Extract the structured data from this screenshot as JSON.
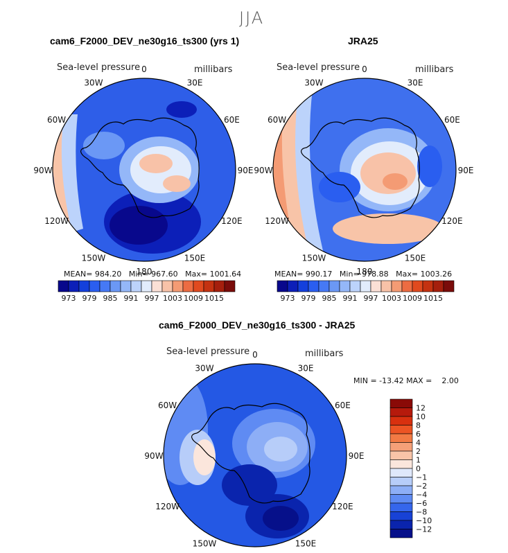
{
  "figure": {
    "season": "JJA"
  },
  "palette": {
    "ocean_bg": "#2a5ad9",
    "deep": "#06108a",
    "land_edge": "#000000",
    "levels": [
      "#08088c",
      "#0c1fb8",
      "#1440dc",
      "#2a5ef0",
      "#4679f5",
      "#6b98f5",
      "#94b7f8",
      "#bcd3fb",
      "#e2ecfc",
      "#fbe0d6",
      "#f8c2a8",
      "#f49b74",
      "#ec6c42",
      "#e04a1f",
      "#c43211",
      "#a51f0d",
      "#7a0c0a"
    ]
  },
  "panels": {
    "model": {
      "title": "cam6_F2000_DEV_ne30g16_ts300 (yrs 1)",
      "variable": "Sea-level pressure",
      "units": "millibars",
      "mean_label": "MEAN=",
      "mean": "984.20",
      "min_label": "Min=",
      "min": "967.60",
      "max_label": "Max=",
      "max": "1001.64"
    },
    "obs": {
      "title": "JRA25",
      "variable": "Sea-level pressure",
      "units": "millibars",
      "mean_label": "MEAN=",
      "mean": "990.17",
      "min_label": "Min=",
      "min": "978.88",
      "max_label": "Max=",
      "max": "1003.26"
    },
    "diff": {
      "title": "cam6_F2000_DEV_ne30g16_ts300 - JRA25",
      "variable": "Sea-level pressure",
      "units": "millibars",
      "minmax_text": "MIN = -13.42 MAX =    2.00"
    }
  },
  "longitude_labels": [
    "0",
    "30E",
    "60E",
    "90E",
    "120E",
    "150E",
    "180",
    "150W",
    "120W",
    "90W",
    "60W",
    "30W"
  ],
  "horizontal_colorbar_ticks": [
    "973",
    "979",
    "985",
    "991",
    "997",
    "1003",
    "1009",
    "1015"
  ],
  "vertical_colorbar_ticks": [
    "12",
    "10",
    "8",
    "6",
    "4",
    "2",
    "1",
    "0",
    "−1",
    "−2",
    "−4",
    "−6",
    "−8",
    "−10",
    "−12"
  ],
  "vertical_colorbar_colors": [
    "#8a0a07",
    "#b61a0c",
    "#d8300f",
    "#ec5424",
    "#f27a44",
    "#f5a078",
    "#f8c4a8",
    "#fbe6dc",
    "#dfe8fb",
    "#b7cdf9",
    "#8daef6",
    "#5f8bf3",
    "#3566ec",
    "#1842d6",
    "#0a24ad",
    "#06108a"
  ]
}
